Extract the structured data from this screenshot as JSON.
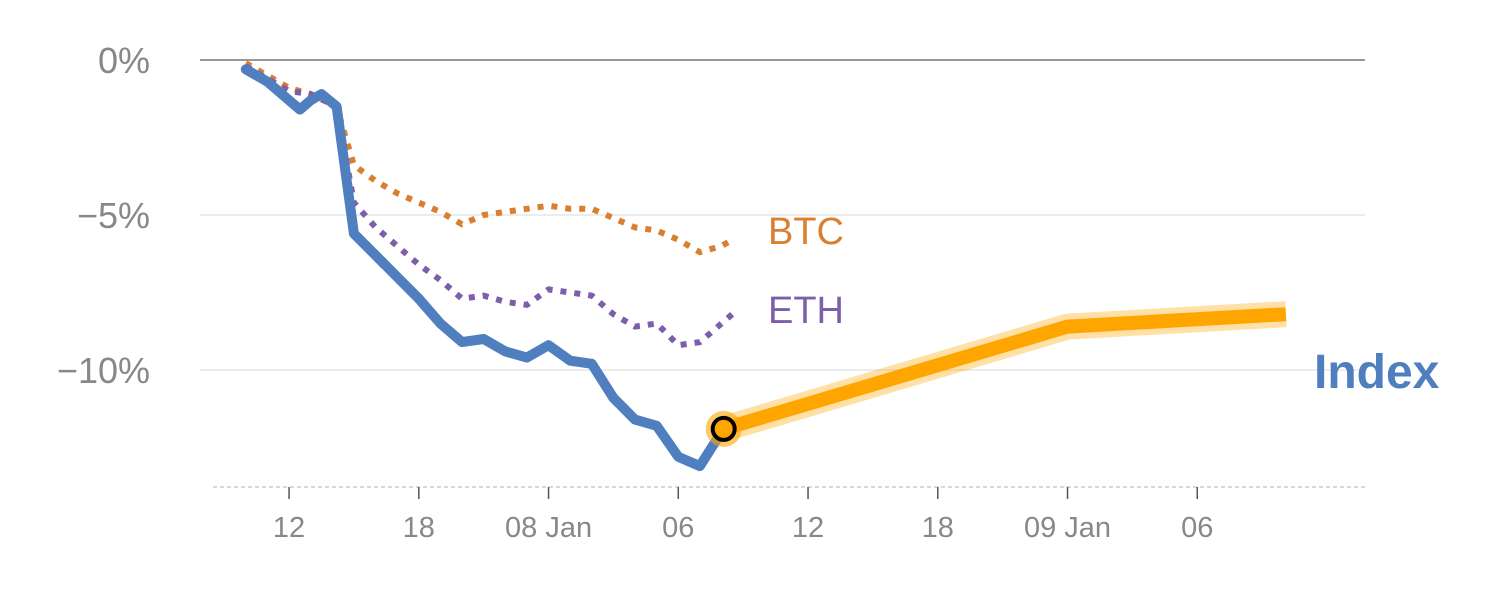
{
  "chart_data": {
    "type": "line",
    "title": "",
    "xlabel": "",
    "ylabel": "",
    "ylim": [
      -14,
      0
    ],
    "y_ticks": [
      {
        "value": 0,
        "label": "0%"
      },
      {
        "value": -5,
        "label": "−5%"
      },
      {
        "value": -10,
        "label": "−10%"
      }
    ],
    "x_range": [
      9.5,
      60.0
    ],
    "x_ticks": [
      {
        "pos": 12,
        "label": "12"
      },
      {
        "pos": 18,
        "label": "18"
      },
      {
        "pos": 24,
        "label": "08 Jan"
      },
      {
        "pos": 30,
        "label": "06"
      },
      {
        "pos": 36,
        "label": "12"
      },
      {
        "pos": 42,
        "label": "18"
      },
      {
        "pos": 48,
        "label": "09 Jan"
      },
      {
        "pos": 54,
        "label": "06"
      }
    ],
    "series": [
      {
        "name": "Index",
        "color": "#4f7fbf",
        "style": "solid",
        "points": [
          [
            10,
            -0.3
          ],
          [
            11,
            -0.7
          ],
          [
            12,
            -1.3
          ],
          [
            12.5,
            -1.6
          ],
          [
            13,
            -1.3
          ],
          [
            13.5,
            -1.1
          ],
          [
            14.2,
            -1.5
          ],
          [
            15,
            -5.6
          ],
          [
            16,
            -6.3
          ],
          [
            17,
            -7.0
          ],
          [
            18,
            -7.7
          ],
          [
            19,
            -8.5
          ],
          [
            20,
            -9.1
          ],
          [
            21,
            -9.0
          ],
          [
            22,
            -9.4
          ],
          [
            23,
            -9.6
          ],
          [
            24,
            -9.2
          ],
          [
            25,
            -9.7
          ],
          [
            26,
            -9.8
          ],
          [
            27,
            -10.9
          ],
          [
            28,
            -11.6
          ],
          [
            29,
            -11.8
          ],
          [
            30,
            -12.8
          ],
          [
            31,
            -13.1
          ],
          [
            32,
            -12.0
          ]
        ]
      },
      {
        "name": "BTC",
        "color": "#d97f30",
        "style": "dotted",
        "points": [
          [
            10,
            -0.1
          ],
          [
            11,
            -0.5
          ],
          [
            12,
            -0.9
          ],
          [
            13,
            -1.1
          ],
          [
            14.2,
            -1.5
          ],
          [
            15,
            -3.4
          ],
          [
            16,
            -3.9
          ],
          [
            17,
            -4.3
          ],
          [
            18,
            -4.6
          ],
          [
            19,
            -4.9
          ],
          [
            20,
            -5.3
          ],
          [
            21,
            -5.0
          ],
          [
            22,
            -4.9
          ],
          [
            23,
            -4.8
          ],
          [
            24,
            -4.7
          ],
          [
            25,
            -4.8
          ],
          [
            26,
            -4.8
          ],
          [
            27,
            -5.1
          ],
          [
            28,
            -5.4
          ],
          [
            29,
            -5.5
          ],
          [
            30,
            -5.8
          ],
          [
            31,
            -6.2
          ],
          [
            32,
            -6.0
          ],
          [
            32.5,
            -5.8
          ]
        ]
      },
      {
        "name": "ETH",
        "color": "#7d5ea8",
        "style": "dotted",
        "points": [
          [
            10,
            -0.2
          ],
          [
            11,
            -0.6
          ],
          [
            12,
            -1.0
          ],
          [
            13,
            -1.1
          ],
          [
            14.2,
            -1.5
          ],
          [
            15,
            -4.6
          ],
          [
            16,
            -5.4
          ],
          [
            17,
            -6.0
          ],
          [
            18,
            -6.6
          ],
          [
            19,
            -7.1
          ],
          [
            20,
            -7.7
          ],
          [
            21,
            -7.6
          ],
          [
            22,
            -7.8
          ],
          [
            23,
            -7.9
          ],
          [
            24,
            -7.4
          ],
          [
            25,
            -7.5
          ],
          [
            26,
            -7.6
          ],
          [
            27,
            -8.2
          ],
          [
            28,
            -8.6
          ],
          [
            29,
            -8.5
          ],
          [
            30,
            -9.2
          ],
          [
            31,
            -9.1
          ],
          [
            32,
            -8.5
          ],
          [
            32.5,
            -8.2
          ]
        ]
      },
      {
        "name": "",
        "color": "#ffa500",
        "style": "forecast",
        "points": [
          [
            32.1,
            -11.9
          ],
          [
            48,
            -8.6
          ],
          [
            58.1,
            -8.2
          ]
        ]
      }
    ],
    "labels": [
      {
        "text": "BTC",
        "color": "#d97f30"
      },
      {
        "text": "ETH",
        "color": "#7d5ea8"
      },
      {
        "text": "Index",
        "color": "#4f7fbf"
      }
    ],
    "highlight_point": {
      "x": 32.1,
      "y": -11.9,
      "fill": "#ffa500",
      "stroke": "#000000"
    },
    "grid": true,
    "legend": "inline"
  }
}
